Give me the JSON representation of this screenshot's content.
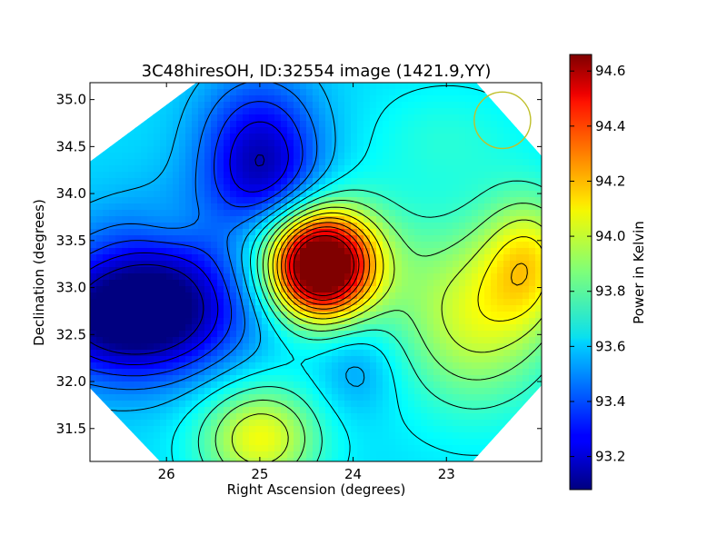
{
  "chart_data": {
    "type": "heatmap",
    "title": "3C48hiresOH, ID:32554 image (1421.9,YY)",
    "xlabel": "Right Ascension (degrees)",
    "ylabel": "Declination (degrees)",
    "colorbar_label": "Power in Kelvin",
    "x_range": [
      26.82,
      21.98
    ],
    "y_range": [
      31.15,
      35.18
    ],
    "x_ticks": [
      26,
      25,
      24,
      23
    ],
    "x_tick_labels": [
      "26",
      "25",
      "24",
      "23"
    ],
    "y_ticks": [
      31.5,
      32.0,
      32.5,
      33.0,
      33.5,
      34.0,
      34.5,
      35.0
    ],
    "y_tick_labels": [
      "31.5",
      "32.0",
      "32.5",
      "33.0",
      "33.5",
      "34.0",
      "34.5",
      "35.0"
    ],
    "colorbar_range": [
      93.08,
      94.66
    ],
    "colorbar_ticks": [
      93.2,
      93.4,
      93.6,
      93.8,
      94.0,
      94.2,
      94.4,
      94.6
    ],
    "colorbar_tick_labels": [
      "93.2",
      "93.4",
      "93.6",
      "93.8",
      "94.0",
      "94.2",
      "94.4",
      "94.6"
    ],
    "colormap": "jet",
    "background_level": 93.62,
    "map_footprint": [
      [
        26.82,
        34.34
      ],
      [
        25.68,
        35.18
      ],
      [
        22.68,
        35.18
      ],
      [
        21.98,
        34.4
      ],
      [
        21.98,
        31.96
      ],
      [
        22.72,
        31.15
      ],
      [
        26.07,
        31.15
      ],
      [
        26.82,
        31.93
      ]
    ],
    "features": [
      {
        "ra": 24.35,
        "dec": 33.22,
        "value": 94.66,
        "sigma_ra": 0.36,
        "sigma_dec": 0.37
      },
      {
        "ra": 24.25,
        "dec": 33.35,
        "value": 93.95,
        "sigma_ra": 0.55,
        "sigma_dec": 0.5
      },
      {
        "ra": 26.4,
        "dec": 32.65,
        "value": 93.1,
        "sigma_ra": 0.75,
        "sigma_dec": 0.45
      },
      {
        "ra": 26.05,
        "dec": 33.1,
        "value": 93.35,
        "sigma_ra": 0.7,
        "sigma_dec": 0.55
      },
      {
        "ra": 25.0,
        "dec": 34.55,
        "value": 93.25,
        "sigma_ra": 0.45,
        "sigma_dec": 0.5
      },
      {
        "ra": 24.9,
        "dec": 34.05,
        "value": 93.42,
        "sigma_ra": 0.45,
        "sigma_dec": 0.35
      },
      {
        "ra": 23.95,
        "dec": 32.15,
        "value": 93.5,
        "sigma_ra": 0.3,
        "sigma_dec": 0.35
      },
      {
        "ra": 25.0,
        "dec": 31.4,
        "value": 94.05,
        "sigma_ra": 0.45,
        "sigma_dec": 0.4
      },
      {
        "ra": 22.7,
        "dec": 32.7,
        "value": 94.0,
        "sigma_ra": 0.6,
        "sigma_dec": 0.7
      },
      {
        "ra": 22.1,
        "dec": 33.3,
        "value": 93.98,
        "sigma_ra": 0.35,
        "sigma_dec": 0.5
      },
      {
        "ra": 25.95,
        "dec": 33.65,
        "value": 93.68,
        "sigma_ra": 0.28,
        "sigma_dec": 0.2
      },
      {
        "ra": 23.0,
        "dec": 34.6,
        "value": 93.72,
        "sigma_ra": 0.6,
        "sigma_dec": 0.4
      }
    ],
    "contour_levels": [
      93.16,
      93.26,
      93.36,
      93.46,
      93.56,
      93.66,
      93.76,
      93.86,
      93.96,
      94.06,
      94.16,
      94.26,
      94.36,
      94.46,
      94.56
    ],
    "beam_marker": {
      "ra": 22.4,
      "dec": 34.78,
      "radius_deg": 0.3,
      "color": "#bfbf2a"
    },
    "contour_color": "#000000"
  }
}
